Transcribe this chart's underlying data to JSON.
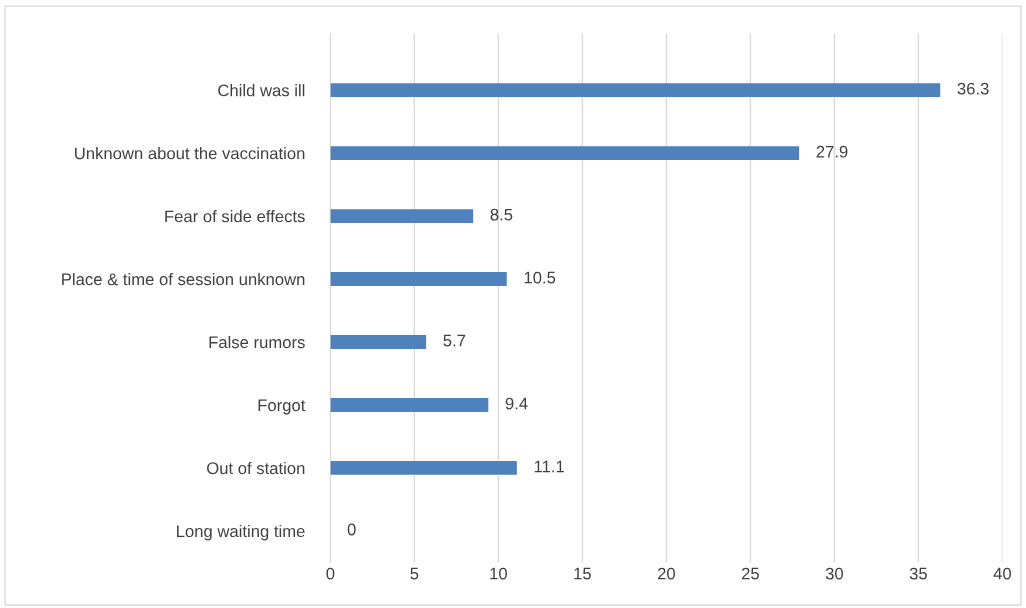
{
  "chart_data": {
    "type": "bar",
    "orientation": "horizontal",
    "categories": [
      "Child was ill",
      "Unknown about the vaccination",
      "Fear of side effects",
      "Place & time of session unknown",
      "False rumors",
      "Forgot",
      "Out of station",
      "Long waiting time"
    ],
    "values": [
      36.3,
      27.9,
      8.5,
      10.5,
      5.7,
      9.4,
      11.1,
      0
    ],
    "color": "#4f81bd",
    "xlim": [
      0,
      40
    ],
    "xticks": [
      0,
      5,
      10,
      15,
      20,
      25,
      30,
      35,
      40
    ],
    "grid": "x",
    "data_labels": true,
    "legend": false
  }
}
